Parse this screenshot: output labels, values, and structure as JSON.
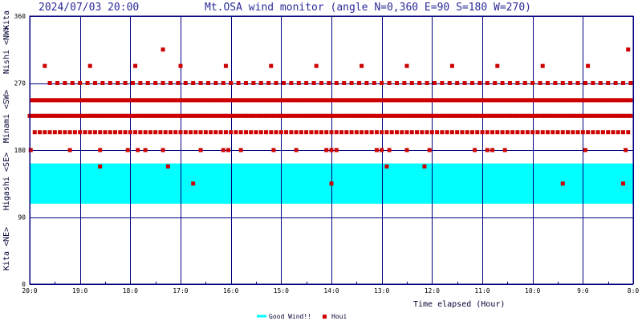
{
  "header": {
    "datetime": "2024/07/03 20:00",
    "title": "Mt.OSA wind monitor (angle N=0,360 E=90 S=180 W=270)"
  },
  "colors": {
    "frame": "#000080",
    "good_wind": "#00ffff",
    "houi": "#cc0000",
    "header_text": "#2a2a9a"
  },
  "side_labels": {
    "kita_ne": "Kita  <NE>",
    "higashi_se": "Higashi  <SE>",
    "minami_sw": "Minami  <SW>",
    "nishi_nw": "Nishi  <NW>",
    "kita_top": "Kita"
  },
  "x_axis_label": "Time elapsed (Hour)",
  "legend": {
    "good_wind": "Good Wind!!",
    "houi": "Houi"
  },
  "chart_data": {
    "type": "scatter",
    "title": "Mt.OSA wind monitor (angle N=0,360 E=90 S=180 W=270)",
    "xlabel": "Time elapsed (Hour)",
    "ylabel": "",
    "x_direction": "reversed",
    "x_tick_labels": [
      "20:0",
      "19:0",
      "18:0",
      "17:0",
      "16:0",
      "15:0",
      "14:0",
      "13:0",
      "12:0",
      "11:0",
      "10:0",
      "9:0",
      "8:0"
    ],
    "y_ticks": [
      0,
      90,
      180,
      270,
      360
    ],
    "ylim": [
      0,
      360
    ],
    "good_wind_band": [
      108,
      162
    ],
    "grid": true,
    "legend_position": "bottom-center",
    "series": [
      {
        "name": "Houi",
        "rows": [
          {
            "y": 247,
            "from_hour": 0.05,
            "to_hour": 11.97,
            "every": 0.05
          },
          {
            "y": 226,
            "from_hour": 0.0,
            "to_hour": 11.95,
            "every": 0.05
          },
          {
            "y": 204,
            "from_hour": 0.1,
            "to_hour": 11.9,
            "every": 0.1
          },
          {
            "y": 270,
            "from_hour": 0.4,
            "to_hour": 11.95,
            "every": 0.15
          },
          {
            "y": 293,
            "from_hour": 0.3,
            "to_hour": 11.9,
            "every": 0.9
          }
        ],
        "points": [
          [
            0.02,
            180
          ],
          [
            0.8,
            180
          ],
          [
            1.4,
            180
          ],
          [
            1.95,
            180
          ],
          [
            2.15,
            180
          ],
          [
            2.3,
            180
          ],
          [
            2.65,
            180
          ],
          [
            3.4,
            180
          ],
          [
            3.85,
            180
          ],
          [
            3.95,
            180
          ],
          [
            4.2,
            180
          ],
          [
            4.85,
            180
          ],
          [
            5.3,
            180
          ],
          [
            5.9,
            180
          ],
          [
            6.0,
            180
          ],
          [
            6.1,
            180
          ],
          [
            6.9,
            180
          ],
          [
            7.0,
            180
          ],
          [
            7.15,
            180
          ],
          [
            7.5,
            180
          ],
          [
            7.95,
            180
          ],
          [
            8.85,
            180
          ],
          [
            9.1,
            180
          ],
          [
            9.2,
            180
          ],
          [
            9.45,
            180
          ],
          [
            11.05,
            180
          ],
          [
            11.85,
            180
          ],
          [
            1.4,
            158
          ],
          [
            2.75,
            158
          ],
          [
            7.1,
            158
          ],
          [
            7.85,
            158
          ],
          [
            3.25,
            135
          ],
          [
            6.0,
            135
          ],
          [
            10.6,
            135
          ],
          [
            11.8,
            135
          ],
          [
            2.65,
            315
          ],
          [
            11.9,
            315
          ]
        ]
      }
    ]
  }
}
